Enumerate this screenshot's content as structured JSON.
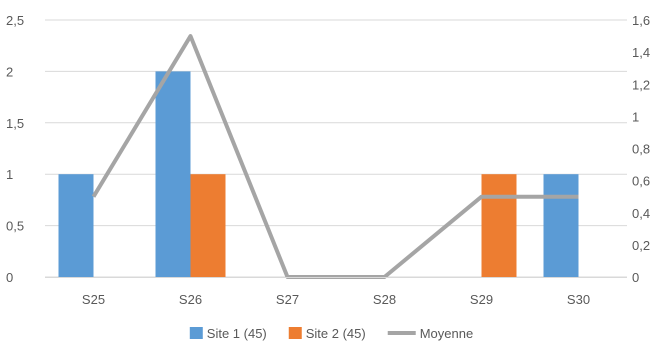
{
  "chart_data": {
    "type": "bar",
    "categories": [
      "S25",
      "S26",
      "S27",
      "S28",
      "S29",
      "S30"
    ],
    "series": [
      {
        "name": "Site 1 (45)",
        "kind": "bar",
        "axis": "left",
        "color": "#5B9BD5",
        "values": [
          1,
          2,
          0,
          0,
          0,
          1
        ]
      },
      {
        "name": "Site 2 (45)",
        "kind": "bar",
        "axis": "left",
        "color": "#ED7D31",
        "values": [
          0,
          1,
          0,
          0,
          1,
          0
        ]
      },
      {
        "name": "Moyenne",
        "kind": "line",
        "axis": "right",
        "color": "#A5A5A5",
        "values": [
          0.5,
          1.5,
          0,
          0,
          0.5,
          0.5
        ]
      }
    ],
    "y_left": {
      "min": 0,
      "max": 2.5,
      "step": 0.5,
      "tick_labels": [
        "0",
        "0,5",
        "1",
        "1,5",
        "2",
        "2,5"
      ]
    },
    "y_right": {
      "min": 0,
      "max": 1.6,
      "step": 0.2,
      "tick_labels": [
        "0",
        "0,2",
        "0,4",
        "0,6",
        "0,8",
        "1",
        "1,2",
        "1,4",
        "1,6"
      ]
    },
    "grid": true,
    "legend_position": "bottom",
    "title": "",
    "xlabel": "",
    "ylabel": ""
  }
}
